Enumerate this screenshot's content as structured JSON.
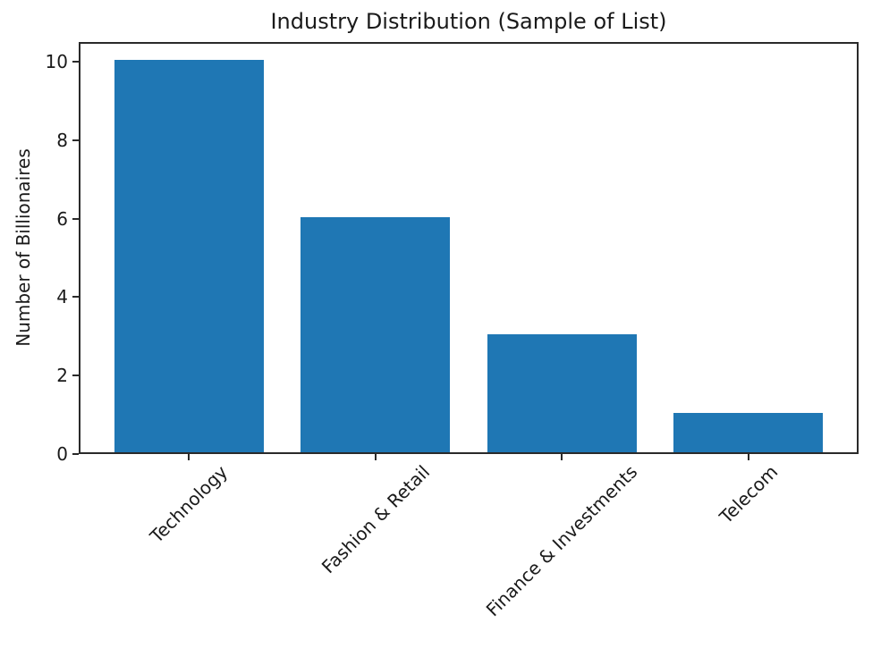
{
  "chart_data": {
    "type": "bar",
    "title": "Industry Distribution (Sample of List)",
    "xlabel": "",
    "ylabel": "Number of Billionaires",
    "categories": [
      "Technology",
      "Fashion & Retail",
      "Finance & Investments",
      "Telecom"
    ],
    "values": [
      10,
      6,
      3,
      1
    ],
    "yticks": [
      0,
      2,
      4,
      6,
      8,
      10
    ],
    "ylim": [
      0,
      10.5
    ],
    "xlim": [
      -0.59,
      3.59
    ],
    "bar_width": 0.8,
    "grid": false,
    "legend": false,
    "colors": {
      "bar": "#1f77b4",
      "axis": "#2a2a2a",
      "text": "#1a1a1a",
      "background": "#ffffff"
    }
  }
}
